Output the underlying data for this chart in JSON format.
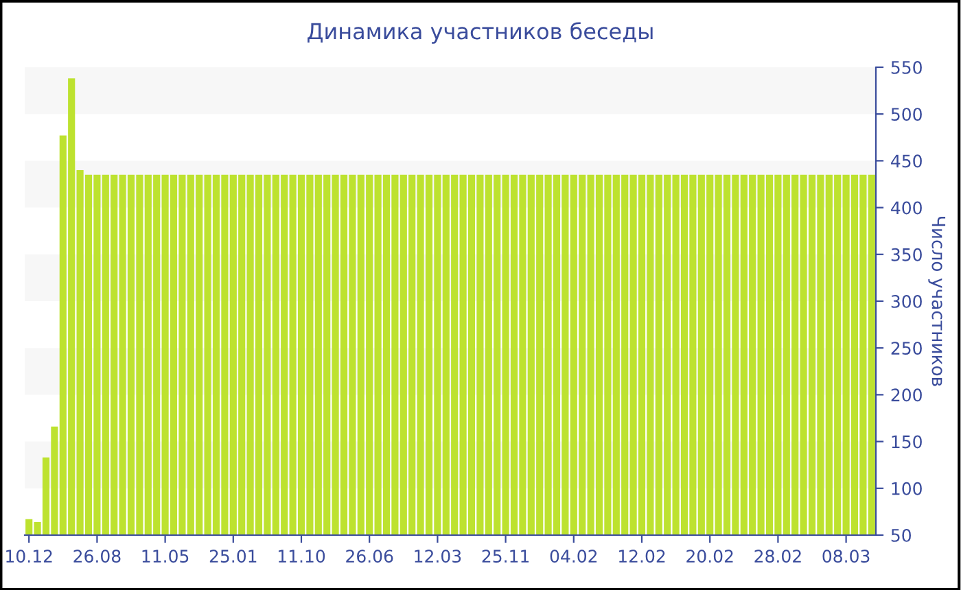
{
  "chart_data": {
    "type": "bar",
    "title": "Динамика участников беседы",
    "ylabel": "Число участников",
    "categories": [
      "10.12",
      null,
      null,
      null,
      null,
      null,
      null,
      null,
      "26.08",
      null,
      null,
      null,
      null,
      null,
      null,
      null,
      "11.05",
      null,
      null,
      null,
      null,
      null,
      null,
      null,
      "25.01",
      null,
      null,
      null,
      null,
      null,
      null,
      null,
      "11.10",
      null,
      null,
      null,
      null,
      null,
      null,
      null,
      "26.06",
      null,
      null,
      null,
      null,
      null,
      null,
      null,
      "12.03",
      null,
      null,
      null,
      null,
      null,
      null,
      null,
      "25.11",
      null,
      null,
      null,
      null,
      null,
      null,
      null,
      "04.02",
      null,
      null,
      null,
      null,
      null,
      null,
      null,
      "12.02",
      null,
      null,
      null,
      null,
      null,
      null,
      null,
      "20.02",
      null,
      null,
      null,
      null,
      null,
      null,
      null,
      "28.02",
      null,
      null,
      null,
      null,
      null,
      null,
      null,
      "08.03",
      null,
      null,
      null
    ],
    "values": [
      67,
      64,
      133,
      166,
      477,
      538,
      440,
      435,
      435,
      435,
      435,
      435,
      435,
      435,
      435,
      435,
      435,
      435,
      435,
      435,
      435,
      435,
      435,
      435,
      435,
      435,
      435,
      435,
      435,
      435,
      435,
      435,
      435,
      435,
      435,
      435,
      435,
      435,
      435,
      435,
      435,
      435,
      435,
      435,
      435,
      435,
      435,
      435,
      435,
      435,
      435,
      435,
      435,
      435,
      435,
      435,
      435,
      435,
      435,
      435,
      435,
      435,
      435,
      435,
      435,
      435,
      435,
      435,
      435,
      435,
      435,
      435,
      435,
      435,
      435,
      435,
      435,
      435,
      435,
      435,
      435,
      435,
      435,
      435,
      435,
      435,
      435,
      435,
      435,
      435,
      435,
      435,
      435,
      435,
      435,
      435,
      435,
      435,
      435,
      435
    ],
    "color": "#bde22f",
    "ylim": [
      50,
      550
    ],
    "yticks": [
      50,
      100,
      150,
      200,
      250,
      300,
      350,
      400,
      450,
      500,
      550
    ],
    "bands": [
      {
        "axis": "y",
        "from": 100,
        "to": 150,
        "color": "#f7f7f7"
      },
      {
        "axis": "y",
        "from": 200,
        "to": 250,
        "color": "#f7f7f7"
      },
      {
        "axis": "y",
        "from": 300,
        "to": 350,
        "color": "#f7f7f7"
      },
      {
        "axis": "y",
        "from": 400,
        "to": 450,
        "color": "#f7f7f7"
      },
      {
        "axis": "y",
        "from": 500,
        "to": 550,
        "color": "#f7f7f7"
      }
    ]
  }
}
